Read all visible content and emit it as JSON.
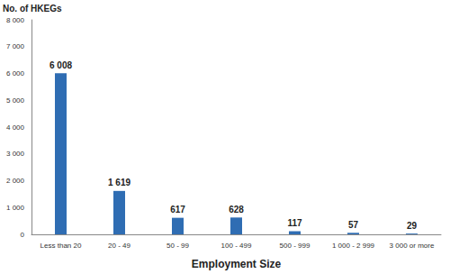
{
  "chart_data": {
    "type": "bar",
    "x_label": "Employment Size",
    "y_label": "No. of HKEGs",
    "categories": [
      "Less than 20",
      "20 - 49",
      "50 - 99",
      "100 - 499",
      "500 - 999",
      "1 000 - 2 999",
      "3 000 or more"
    ],
    "values": [
      6008,
      1619,
      617,
      628,
      117,
      57,
      29
    ],
    "value_labels": [
      "6 008",
      "1 619",
      "617",
      "628",
      "117",
      "57",
      "29"
    ],
    "color": "#2f6db3",
    "ylim": [
      0,
      8000
    ],
    "yticks": [
      0,
      {
        "value": 1000,
        "label": "1 000"
      },
      {
        "value": 2000,
        "label": "2 000"
      },
      {
        "value": 3000,
        "label": "3 000"
      },
      {
        "value": 4000,
        "label": "4 000"
      },
      {
        "value": 5000,
        "label": "5 000"
      },
      {
        "value": 6000,
        "label": "6 000"
      },
      {
        "value": 7000,
        "label": "7 000"
      },
      {
        "value": 8000,
        "label": "8 000"
      }
    ],
    "grid": false,
    "data_labels": true
  }
}
